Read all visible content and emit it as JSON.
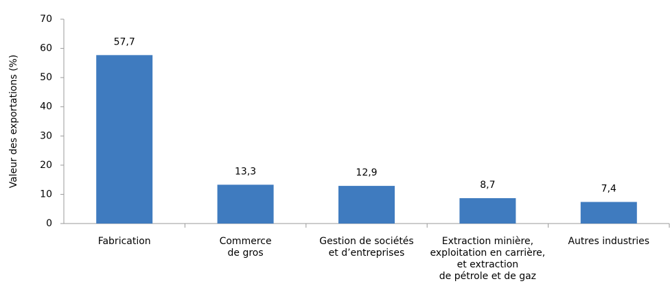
{
  "chart_data": {
    "type": "bar",
    "y_label": "Valeur des exportations (%)",
    "categories": [
      "Fabrication",
      "Commerce\nde gros",
      "Gestion de sociétés\net d’entreprises",
      "Extraction minière,\nexploitation en carrière,\net extraction\nde pétrole et de gaz",
      "Autres industries"
    ],
    "values": [
      57.7,
      13.3,
      12.9,
      8.7,
      7.4
    ],
    "value_labels": [
      "57,7",
      "13,3",
      "12,9",
      "8,7",
      "7,4"
    ],
    "color": "#3f7bbf",
    "ylim": [
      0,
      70
    ],
    "yticks": [
      0,
      10,
      20,
      30,
      40,
      50,
      60,
      70
    ],
    "grid": false
  }
}
